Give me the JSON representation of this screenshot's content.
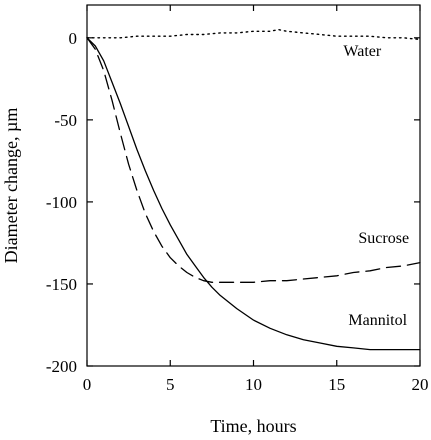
{
  "chart_data": {
    "type": "line",
    "title": "",
    "xlabel": "Time, hours",
    "ylabel": "Diameter change, µm",
    "xlim": [
      0,
      20
    ],
    "ylim": [
      -200,
      20
    ],
    "xticks": [
      0,
      5,
      10,
      15,
      20
    ],
    "yticks": [
      0,
      -50,
      -100,
      -150,
      -200
    ],
    "grid": false,
    "legend": "none",
    "series": [
      {
        "name": "Water",
        "style": "dotted",
        "color": "#000000",
        "x": [
          0,
          1,
          2,
          3,
          4,
          5,
          6,
          7,
          8,
          9,
          10,
          11,
          11.5,
          12,
          13,
          14,
          15,
          16,
          17,
          18,
          19,
          20
        ],
        "y": [
          0,
          0,
          0,
          1,
          1,
          1,
          2,
          2,
          3,
          3,
          4,
          4,
          5,
          4,
          3,
          2,
          1,
          1,
          1,
          0,
          0,
          -1
        ]
      },
      {
        "name": "Sucrose",
        "style": "dashed",
        "color": "#000000",
        "x": [
          0,
          0.5,
          1,
          1.5,
          2,
          2.5,
          3,
          3.5,
          4,
          4.5,
          5,
          5.5,
          6,
          6.5,
          7,
          7.5,
          8,
          9,
          10,
          11,
          12,
          13,
          14,
          15,
          16,
          17,
          18,
          19,
          20
        ],
        "y": [
          0,
          -7,
          -20,
          -38,
          -58,
          -77,
          -93,
          -107,
          -118,
          -127,
          -134,
          -139,
          -143,
          -146,
          -148,
          -149,
          -149,
          -149,
          -149,
          -148,
          -148,
          -147,
          -146,
          -145,
          -143,
          -142,
          -140,
          -139,
          -137
        ]
      },
      {
        "name": "Mannitol",
        "style": "solid",
        "color": "#000000",
        "x": [
          0,
          0.5,
          1,
          1.5,
          2,
          2.5,
          3,
          3.5,
          4,
          4.5,
          5,
          5.5,
          6,
          6.5,
          7,
          7.5,
          8,
          9,
          10,
          11,
          12,
          13,
          14,
          15,
          16,
          17,
          18,
          19,
          20
        ],
        "y": [
          0,
          -5,
          -14,
          -27,
          -40,
          -54,
          -68,
          -81,
          -93,
          -104,
          -114,
          -123,
          -132,
          -139,
          -146,
          -152,
          -157,
          -165,
          -172,
          -177,
          -181,
          -184,
          -186,
          -188,
          -189,
          -190,
          -190,
          -190,
          -190
        ]
      }
    ],
    "annotations": [
      {
        "text": "Water",
        "x": 15.4,
        "y": -11
      },
      {
        "text": "Sucrose",
        "x": 16.3,
        "y": -125
      },
      {
        "text": "Mannitol",
        "x": 15.7,
        "y": -175
      }
    ]
  }
}
